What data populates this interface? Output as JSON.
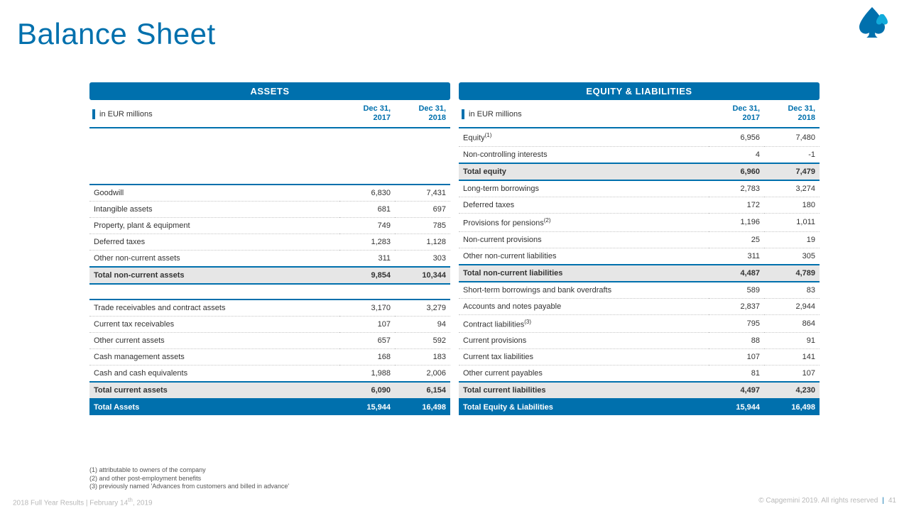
{
  "title": "Balance Sheet",
  "logo": {
    "fill": "#0070ad",
    "highlight": "#12abdb"
  },
  "col_headers": {
    "unit": "in EUR millions",
    "c1a": "Dec 31,",
    "c1b": "2017",
    "c2a": "Dec 31,",
    "c2b": "2018"
  },
  "assets": {
    "header": "ASSETS",
    "rows_a": [
      {
        "label": "Goodwill",
        "v1": "6,830",
        "v2": "7,431"
      },
      {
        "label": "Intangible assets",
        "v1": "681",
        "v2": "697"
      },
      {
        "label": "Property, plant & equipment",
        "v1": "749",
        "v2": "785"
      },
      {
        "label": "Deferred taxes",
        "v1": "1,283",
        "v2": "1,128"
      },
      {
        "label": "Other non-current assets",
        "v1": "311",
        "v2": "303"
      }
    ],
    "sub_a": {
      "label": "Total non-current assets",
      "v1": "9,854",
      "v2": "10,344"
    },
    "rows_b": [
      {
        "label": "Trade receivables and contract assets",
        "v1": "3,170",
        "v2": "3,279"
      },
      {
        "label": "Current tax receivables",
        "v1": "107",
        "v2": "94"
      },
      {
        "label": "Other current assets",
        "v1": "657",
        "v2": "592"
      },
      {
        "label": "Cash management assets",
        "v1": "168",
        "v2": "183"
      },
      {
        "label": "Cash and cash equivalents",
        "v1": "1,988",
        "v2": "2,006"
      }
    ],
    "sub_b": {
      "label": "Total current assets",
      "v1": "6,090",
      "v2": "6,154"
    },
    "grand": {
      "label": "Total Assets",
      "v1": "15,944",
      "v2": "16,498"
    }
  },
  "liab": {
    "header": "EQUITY & LIABILITIES",
    "rows_e": [
      {
        "label": "Equity",
        "sup": "(1)",
        "v1": "6,956",
        "v2": "7,480"
      },
      {
        "label": "Non-controlling interests",
        "v1": "4",
        "v2": "-1"
      }
    ],
    "sub_e": {
      "label": "Total equity",
      "v1": "6,960",
      "v2": "7,479"
    },
    "rows_nc": [
      {
        "label": "Long-term borrowings",
        "v1": "2,783",
        "v2": "3,274"
      },
      {
        "label": "Deferred taxes",
        "v1": "172",
        "v2": "180"
      },
      {
        "label": "Provisions for pensions",
        "sup": "(2)",
        "v1": "1,196",
        "v2": "1,011"
      },
      {
        "label": "Non-current provisions",
        "v1": "25",
        "v2": "19"
      },
      {
        "label": "Other non-current liabilities",
        "v1": "311",
        "v2": "305"
      }
    ],
    "sub_nc": {
      "label": "Total non-current liabilities",
      "v1": "4,487",
      "v2": "4,789"
    },
    "rows_c": [
      {
        "label": "Short-term borrowings and bank overdrafts",
        "v1": "589",
        "v2": "83"
      },
      {
        "label": "Accounts and notes payable",
        "v1": "2,837",
        "v2": "2,944"
      },
      {
        "label": "Contract liabilities",
        "sup": "(3)",
        "v1": "795",
        "v2": "864"
      },
      {
        "label": "Current provisions",
        "v1": "88",
        "v2": "91"
      },
      {
        "label": "Current tax liabilities",
        "v1": "107",
        "v2": "141"
      },
      {
        "label": "Other current payables",
        "v1": "81",
        "v2": "107"
      }
    ],
    "sub_c": {
      "label": "Total current liabilities",
      "v1": "4,497",
      "v2": "4,230"
    },
    "grand": {
      "label": "Total Equity & Liabilities",
      "v1": "15,944",
      "v2": "16,498"
    }
  },
  "footnotes": [
    "(1)  attributable to owners of the company",
    "(2)  and other post-employment benefits",
    "(3)  previously named 'Advances from customers and billed in advance'"
  ],
  "footer": {
    "left_a": "2018 Full Year Results | February 14",
    "left_sup": "th",
    "left_b": ", 2019",
    "right": "© Capgemini 2019. All rights reserved",
    "page": "41"
  }
}
